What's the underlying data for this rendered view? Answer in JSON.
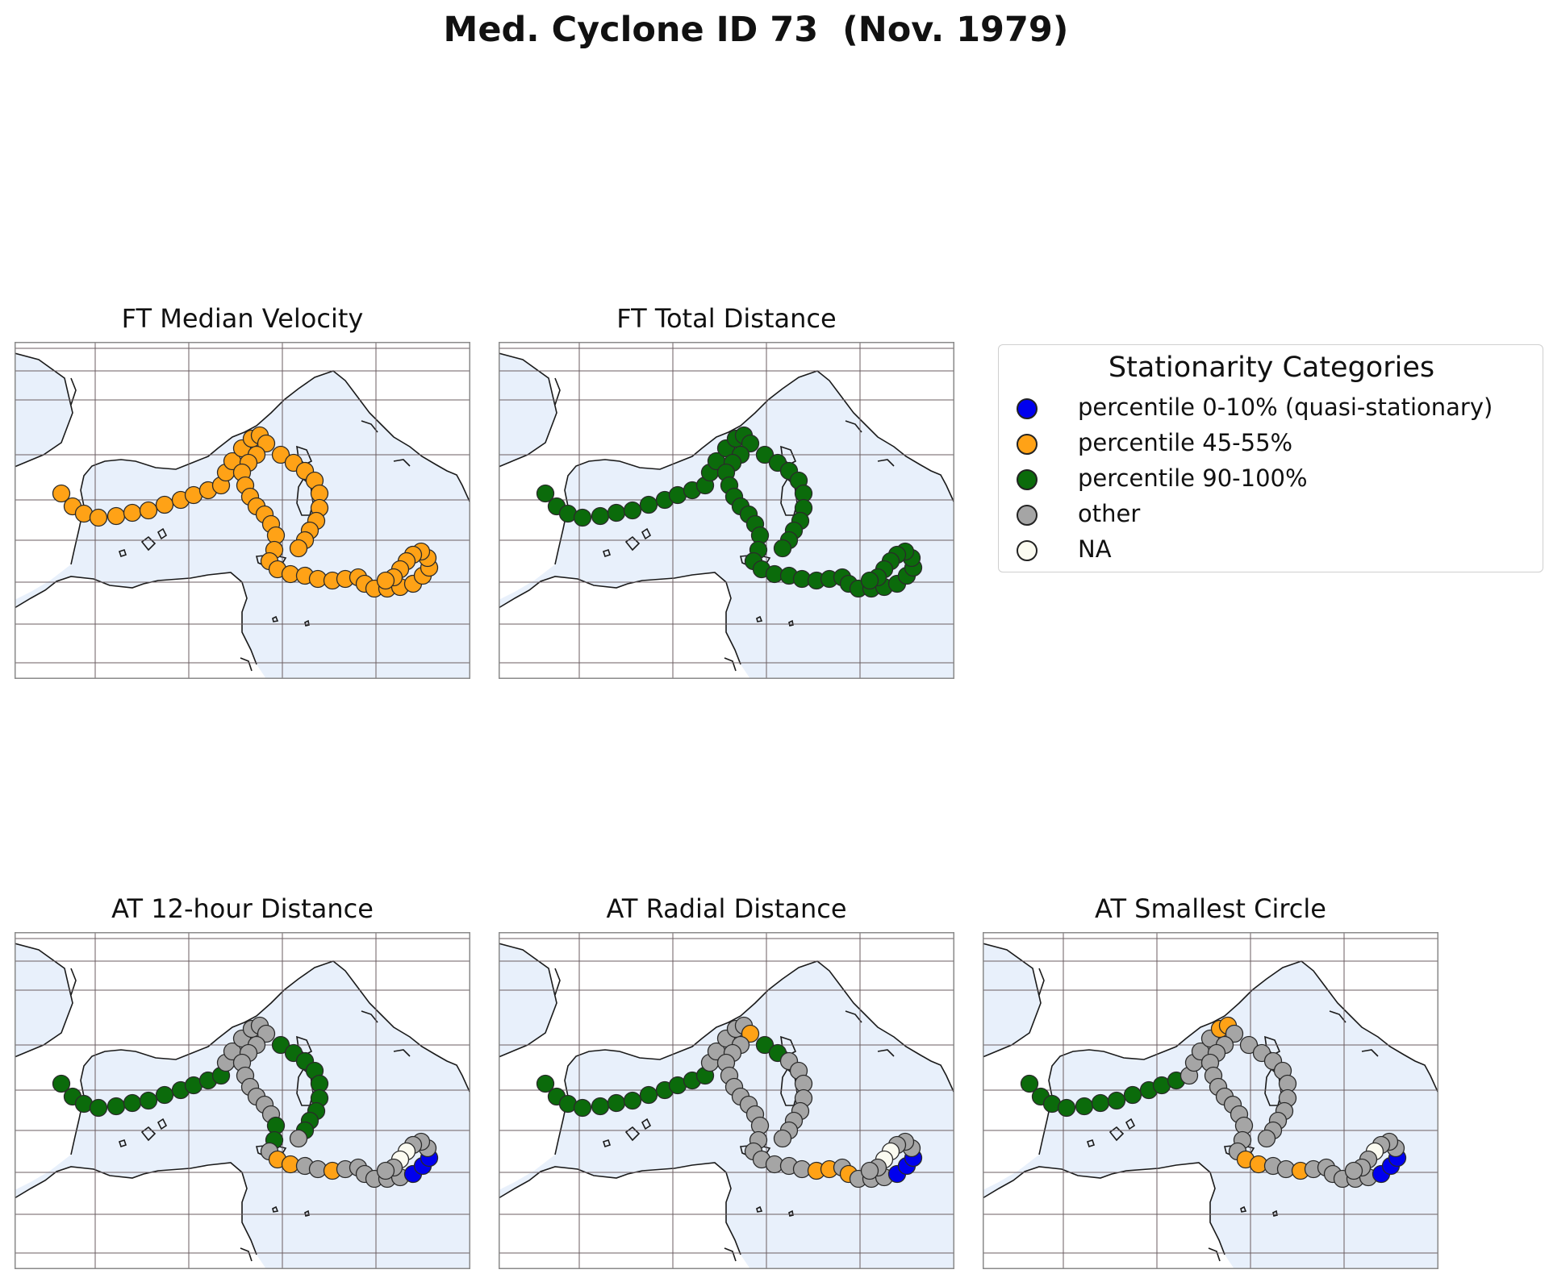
{
  "title": "Med. Cyclone ID 73  (Nov. 1979)",
  "colors": {
    "sea": "#e8f0fb",
    "coast": "#1a1a1a",
    "grid": "#6b5e62",
    "quasi": "#0000ee",
    "mid": "#ffa216",
    "high": "#0b6b0b",
    "other": "#a5a5a5",
    "na": "#fbfbf1",
    "edge": "#2a2a2a"
  },
  "legend": {
    "title": "Stationarity Categories",
    "items": [
      {
        "key": "quasi",
        "label": "percentile 0-10% (quasi-stationary)"
      },
      {
        "key": "mid",
        "label": "percentile 45-55%"
      },
      {
        "key": "high",
        "label": "percentile 90-100%"
      },
      {
        "key": "other",
        "label": "other"
      },
      {
        "key": "na",
        "label": "NA"
      }
    ]
  },
  "panels": [
    {
      "id": "ft-median-velocity",
      "title": "FT Median Velocity",
      "mode": "mid"
    },
    {
      "id": "ft-total-distance",
      "title": "FT Total Distance",
      "mode": "high"
    },
    {
      "id": "at-12-hour-distance",
      "title": "AT 12-hour Distance",
      "mode": "at12"
    },
    {
      "id": "at-radial-distance",
      "title": "AT Radial Distance",
      "mode": "atrad"
    },
    {
      "id": "at-smallest-circle",
      "title": "AT Smallest Circle",
      "mode": "atcirc"
    }
  ]
}
